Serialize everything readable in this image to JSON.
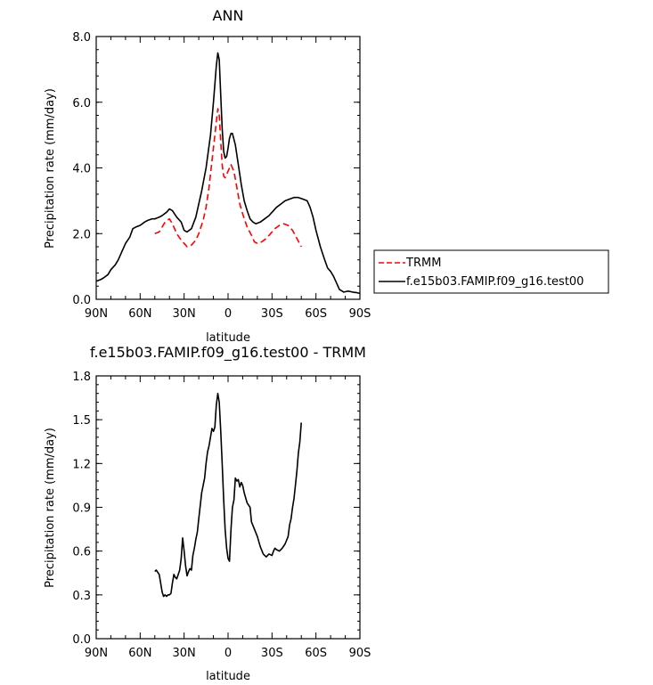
{
  "chart_data": [
    {
      "type": "line",
      "title": "ANN",
      "xlabel": "latitude",
      "ylabel": "Precipitation rate (mm/day)",
      "xlim": [
        90,
        -90
      ],
      "ylim": [
        0,
        8
      ],
      "xticks": [
        90,
        60,
        30,
        0,
        -30,
        -60,
        -90
      ],
      "xticklabels": [
        "90N",
        "60N",
        "30N",
        "0",
        "30S",
        "60S",
        "90S"
      ],
      "yticks": [
        0,
        2,
        4,
        6,
        8
      ],
      "yticklabels": [
        "0.0",
        "2.0",
        "4.0",
        "6.0",
        "8.0"
      ],
      "grid": false,
      "legend_position": "right",
      "series": [
        {
          "name": "TRMM",
          "color": "#ff0000",
          "dash": "dashed",
          "points": [
            [
              50,
              2.0
            ],
            [
              47,
              2.05
            ],
            [
              45,
              2.2
            ],
            [
              43,
              2.35
            ],
            [
              40,
              2.45
            ],
            [
              38,
              2.3
            ],
            [
              35,
              2.0
            ],
            [
              32,
              1.8
            ],
            [
              30,
              1.7
            ],
            [
              28,
              1.6
            ],
            [
              25,
              1.65
            ],
            [
              22,
              1.8
            ],
            [
              20,
              2.0
            ],
            [
              17,
              2.4
            ],
            [
              15,
              2.8
            ],
            [
              13,
              3.4
            ],
            [
              11,
              4.2
            ],
            [
              9,
              5.0
            ],
            [
              7,
              5.8
            ],
            [
              6,
              5.6
            ],
            [
              5,
              4.8
            ],
            [
              4,
              4.1
            ],
            [
              3,
              3.75
            ],
            [
              2,
              3.7
            ],
            [
              1,
              3.8
            ],
            [
              -1,
              4.0
            ],
            [
              -2,
              4.1
            ],
            [
              -4,
              3.9
            ],
            [
              -6,
              3.4
            ],
            [
              -8,
              2.9
            ],
            [
              -10,
              2.6
            ],
            [
              -13,
              2.2
            ],
            [
              -16,
              1.95
            ],
            [
              -18,
              1.75
            ],
            [
              -20,
              1.7
            ],
            [
              -23,
              1.75
            ],
            [
              -26,
              1.85
            ],
            [
              -29,
              2.0
            ],
            [
              -32,
              2.15
            ],
            [
              -35,
              2.25
            ],
            [
              -38,
              2.3
            ],
            [
              -41,
              2.25
            ],
            [
              -44,
              2.1
            ],
            [
              -47,
              1.85
            ],
            [
              -50,
              1.6
            ]
          ]
        },
        {
          "name": "f.e15b03.FAMIP.f09_g16.test00",
          "color": "#000000",
          "dash": "solid",
          "points": [
            [
              90,
              0.55
            ],
            [
              87,
              0.6
            ],
            [
              85,
              0.65
            ],
            [
              82,
              0.75
            ],
            [
              80,
              0.9
            ],
            [
              77,
              1.05
            ],
            [
              75,
              1.2
            ],
            [
              72,
              1.5
            ],
            [
              70,
              1.7
            ],
            [
              67,
              1.9
            ],
            [
              65,
              2.15
            ],
            [
              63,
              2.2
            ],
            [
              60,
              2.25
            ],
            [
              57,
              2.35
            ],
            [
              55,
              2.4
            ],
            [
              52,
              2.45
            ],
            [
              50,
              2.45
            ],
            [
              47,
              2.5
            ],
            [
              45,
              2.55
            ],
            [
              42,
              2.65
            ],
            [
              40,
              2.75
            ],
            [
              38,
              2.7
            ],
            [
              35,
              2.5
            ],
            [
              32,
              2.35
            ],
            [
              30,
              2.1
            ],
            [
              28,
              2.05
            ],
            [
              25,
              2.15
            ],
            [
              22,
              2.5
            ],
            [
              20,
              2.9
            ],
            [
              18,
              3.3
            ],
            [
              15,
              4.0
            ],
            [
              12,
              5.0
            ],
            [
              10,
              6.0
            ],
            [
              8,
              7.1
            ],
            [
              7,
              7.5
            ],
            [
              6,
              7.3
            ],
            [
              5,
              6.2
            ],
            [
              4,
              5.2
            ],
            [
              3,
              4.5
            ],
            [
              2,
              4.3
            ],
            [
              1,
              4.35
            ],
            [
              0,
              4.6
            ],
            [
              -1,
              4.9
            ],
            [
              -2,
              5.05
            ],
            [
              -3,
              5.05
            ],
            [
              -5,
              4.7
            ],
            [
              -7,
              4.1
            ],
            [
              -9,
              3.5
            ],
            [
              -11,
              3.0
            ],
            [
              -13,
              2.7
            ],
            [
              -15,
              2.45
            ],
            [
              -17,
              2.35
            ],
            [
              -19,
              2.3
            ],
            [
              -22,
              2.35
            ],
            [
              -25,
              2.45
            ],
            [
              -28,
              2.55
            ],
            [
              -30,
              2.65
            ],
            [
              -33,
              2.8
            ],
            [
              -36,
              2.9
            ],
            [
              -39,
              3.0
            ],
            [
              -42,
              3.05
            ],
            [
              -45,
              3.1
            ],
            [
              -48,
              3.1
            ],
            [
              -51,
              3.05
            ],
            [
              -54,
              3.0
            ],
            [
              -56,
              2.8
            ],
            [
              -58,
              2.5
            ],
            [
              -60,
              2.1
            ],
            [
              -63,
              1.6
            ],
            [
              -66,
              1.2
            ],
            [
              -68,
              0.95
            ],
            [
              -70,
              0.85
            ],
            [
              -72,
              0.7
            ],
            [
              -74,
              0.5
            ],
            [
              -76,
              0.3
            ],
            [
              -79,
              0.22
            ],
            [
              -82,
              0.25
            ],
            [
              -85,
              0.22
            ],
            [
              -88,
              0.2
            ],
            [
              -90,
              0.18
            ]
          ]
        }
      ]
    },
    {
      "type": "line",
      "title": "f.e15b03.FAMIP.f09_g16.test00 - TRMM",
      "xlabel": "latitude",
      "ylabel": "Precipitation rate (mm/day)",
      "xlim": [
        90,
        -90
      ],
      "ylim": [
        0,
        1.8
      ],
      "xticks": [
        90,
        60,
        30,
        0,
        -30,
        -60,
        -90
      ],
      "xticklabels": [
        "90N",
        "60N",
        "30N",
        "0",
        "30S",
        "60S",
        "90S"
      ],
      "yticks": [
        0,
        0.3,
        0.6,
        0.9,
        1.2,
        1.5,
        1.8
      ],
      "yticklabels": [
        "0.0",
        "0.3",
        "0.6",
        "0.9",
        "1.2",
        "1.5",
        "1.8"
      ],
      "grid": false,
      "series": [
        {
          "color": "#000000",
          "dash": "solid",
          "points": [
            [
              50,
              0.46
            ],
            [
              49,
              0.47
            ],
            [
              47,
              0.44
            ],
            [
              46,
              0.38
            ],
            [
              45,
              0.32
            ],
            [
              44,
              0.29
            ],
            [
              43,
              0.3
            ],
            [
              42,
              0.29
            ],
            [
              41,
              0.3
            ],
            [
              40,
              0.3
            ],
            [
              39,
              0.31
            ],
            [
              38,
              0.38
            ],
            [
              37,
              0.44
            ],
            [
              36,
              0.42
            ],
            [
              35,
              0.41
            ],
            [
              34,
              0.44
            ],
            [
              33,
              0.47
            ],
            [
              32,
              0.55
            ],
            [
              31,
              0.69
            ],
            [
              30,
              0.6
            ],
            [
              29,
              0.5
            ],
            [
              28,
              0.43
            ],
            [
              27,
              0.46
            ],
            [
              26,
              0.48
            ],
            [
              25,
              0.47
            ],
            [
              24,
              0.57
            ],
            [
              23,
              0.62
            ],
            [
              22,
              0.68
            ],
            [
              21,
              0.73
            ],
            [
              20,
              0.82
            ],
            [
              18,
              1.0
            ],
            [
              16,
              1.1
            ],
            [
              15,
              1.2
            ],
            [
              14,
              1.28
            ],
            [
              13,
              1.32
            ],
            [
              12,
              1.38
            ],
            [
              11,
              1.44
            ],
            [
              10,
              1.42
            ],
            [
              9,
              1.45
            ],
            [
              8,
              1.6
            ],
            [
              7,
              1.68
            ],
            [
              6,
              1.62
            ],
            [
              5,
              1.42
            ],
            [
              4,
              1.2
            ],
            [
              3,
              0.95
            ],
            [
              2,
              0.75
            ],
            [
              1,
              0.62
            ],
            [
              0,
              0.55
            ],
            [
              -1,
              0.53
            ],
            [
              -2,
              0.75
            ],
            [
              -3,
              0.9
            ],
            [
              -4,
              0.95
            ],
            [
              -5,
              1.1
            ],
            [
              -6,
              1.08
            ],
            [
              -7,
              1.09
            ],
            [
              -8,
              1.04
            ],
            [
              -9,
              1.07
            ],
            [
              -10,
              1.05
            ],
            [
              -11,
              1.0
            ],
            [
              -13,
              0.93
            ],
            [
              -15,
              0.9
            ],
            [
              -16,
              0.8
            ],
            [
              -18,
              0.75
            ],
            [
              -20,
              0.7
            ],
            [
              -22,
              0.63
            ],
            [
              -24,
              0.58
            ],
            [
              -26,
              0.56
            ],
            [
              -27,
              0.57
            ],
            [
              -28,
              0.58
            ],
            [
              -30,
              0.57
            ],
            [
              -31,
              0.6
            ],
            [
              -32,
              0.62
            ],
            [
              -33,
              0.61
            ],
            [
              -35,
              0.6
            ],
            [
              -37,
              0.62
            ],
            [
              -39,
              0.65
            ],
            [
              -41,
              0.7
            ],
            [
              -42,
              0.78
            ],
            [
              -43,
              0.82
            ],
            [
              -44,
              0.9
            ],
            [
              -45,
              0.96
            ],
            [
              -46,
              1.05
            ],
            [
              -47,
              1.15
            ],
            [
              -48,
              1.27
            ],
            [
              -49,
              1.35
            ],
            [
              -50,
              1.48
            ]
          ]
        }
      ]
    }
  ]
}
